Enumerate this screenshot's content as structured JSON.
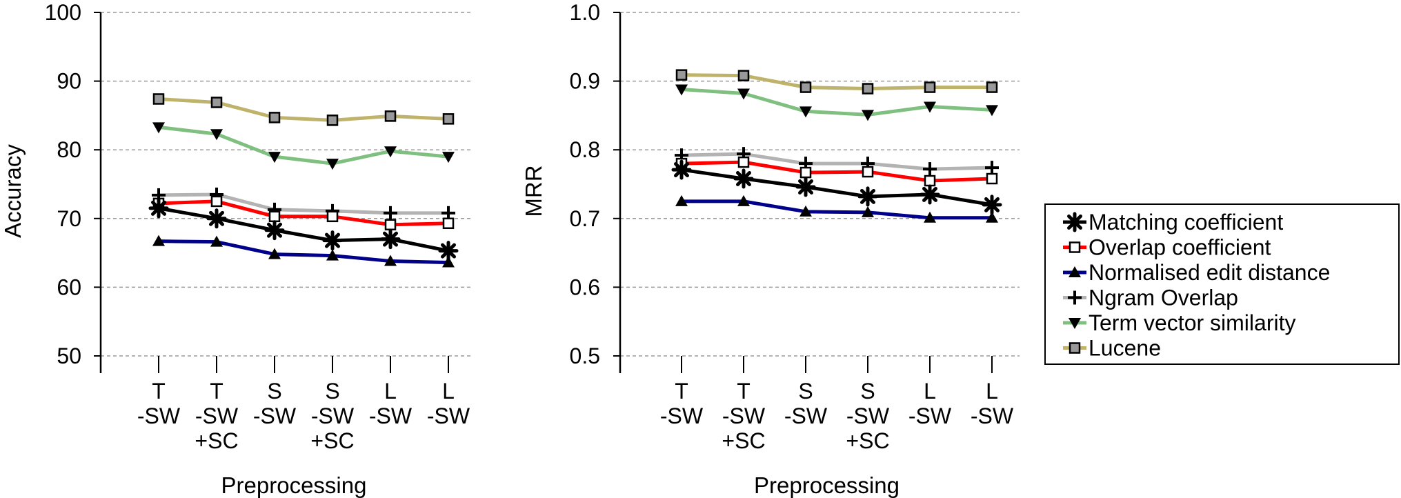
{
  "chart_data": [
    {
      "type": "line",
      "xlabel": "Preprocessing",
      "ylabel": "Accuracy",
      "ylim": [
        50,
        100
      ],
      "yticks": [
        "50",
        "60",
        "70",
        "80",
        "90",
        "100"
      ],
      "grid": "horizontal dashed",
      "categories": [
        [
          "T",
          "-SW"
        ],
        [
          "T",
          "-SW",
          "+SC"
        ],
        [
          "S",
          "-SW"
        ],
        [
          "S",
          "-SW",
          "+SC"
        ],
        [
          "L",
          "-SW"
        ],
        [
          "L",
          "-SW"
        ]
      ],
      "series": [
        {
          "name": "Matching coefficient",
          "values": [
            71.5,
            70.0,
            68.3,
            66.8,
            67.0,
            65.3
          ]
        },
        {
          "name": "Overlap coefficient",
          "values": [
            72.2,
            72.5,
            70.3,
            70.3,
            69.1,
            69.3
          ]
        },
        {
          "name": "Normalised edit distance",
          "values": [
            66.7,
            66.6,
            64.8,
            64.6,
            63.8,
            63.6
          ]
        },
        {
          "name": "Ngram Overlap",
          "values": [
            73.4,
            73.5,
            71.3,
            71.1,
            70.8,
            70.8
          ]
        },
        {
          "name": "Term vector similarity",
          "values": [
            83.3,
            82.3,
            79.0,
            78.0,
            79.8,
            79.0
          ]
        },
        {
          "name": "Lucene",
          "values": [
            87.4,
            86.9,
            84.7,
            84.3,
            84.9,
            84.5
          ]
        }
      ]
    },
    {
      "type": "line",
      "xlabel": "Preprocessing",
      "ylabel": "MRR",
      "ylim": [
        0.5,
        1.0
      ],
      "yticks": [
        "0.5",
        "0.6",
        "0.7",
        "0.8",
        "0.9",
        "1.0"
      ],
      "grid": "horizontal dashed",
      "categories": [
        [
          "T",
          "-SW"
        ],
        [
          "T",
          "-SW",
          "+SC"
        ],
        [
          "S",
          "-SW"
        ],
        [
          "S",
          "-SW",
          "+SC"
        ],
        [
          "L",
          "-SW"
        ],
        [
          "L",
          "-SW"
        ]
      ],
      "series": [
        {
          "name": "Matching coefficient",
          "values": [
            0.771,
            0.758,
            0.746,
            0.732,
            0.735,
            0.72
          ]
        },
        {
          "name": "Overlap coefficient",
          "values": [
            0.78,
            0.782,
            0.767,
            0.768,
            0.755,
            0.758
          ]
        },
        {
          "name": "Normalised edit distance",
          "values": [
            0.725,
            0.725,
            0.71,
            0.709,
            0.701,
            0.701
          ]
        },
        {
          "name": "Ngram Overlap",
          "values": [
            0.792,
            0.794,
            0.78,
            0.78,
            0.772,
            0.774
          ]
        },
        {
          "name": "Term vector similarity",
          "values": [
            0.888,
            0.882,
            0.856,
            0.851,
            0.863,
            0.858
          ]
        },
        {
          "name": "Lucene",
          "values": [
            0.909,
            0.908,
            0.891,
            0.889,
            0.891,
            0.891
          ]
        }
      ]
    }
  ],
  "legend": {
    "placement": "right",
    "items": [
      {
        "label": "Matching coefficient",
        "color": "#000000",
        "marker": "asterisk"
      },
      {
        "label": "Overlap coefficient",
        "color": "#ff0000",
        "marker": "open-square"
      },
      {
        "label": "Normalised edit distance",
        "color": "#00008b",
        "marker": "triangle-up"
      },
      {
        "label": "Ngram Overlap",
        "color": "#b3b3b3",
        "marker": "plus"
      },
      {
        "label": "Term vector similarity",
        "color": "#7fbf7f",
        "marker": "triangle-down"
      },
      {
        "label": "Lucene",
        "color": "#bfb36b",
        "marker": "gray-square"
      }
    ]
  }
}
